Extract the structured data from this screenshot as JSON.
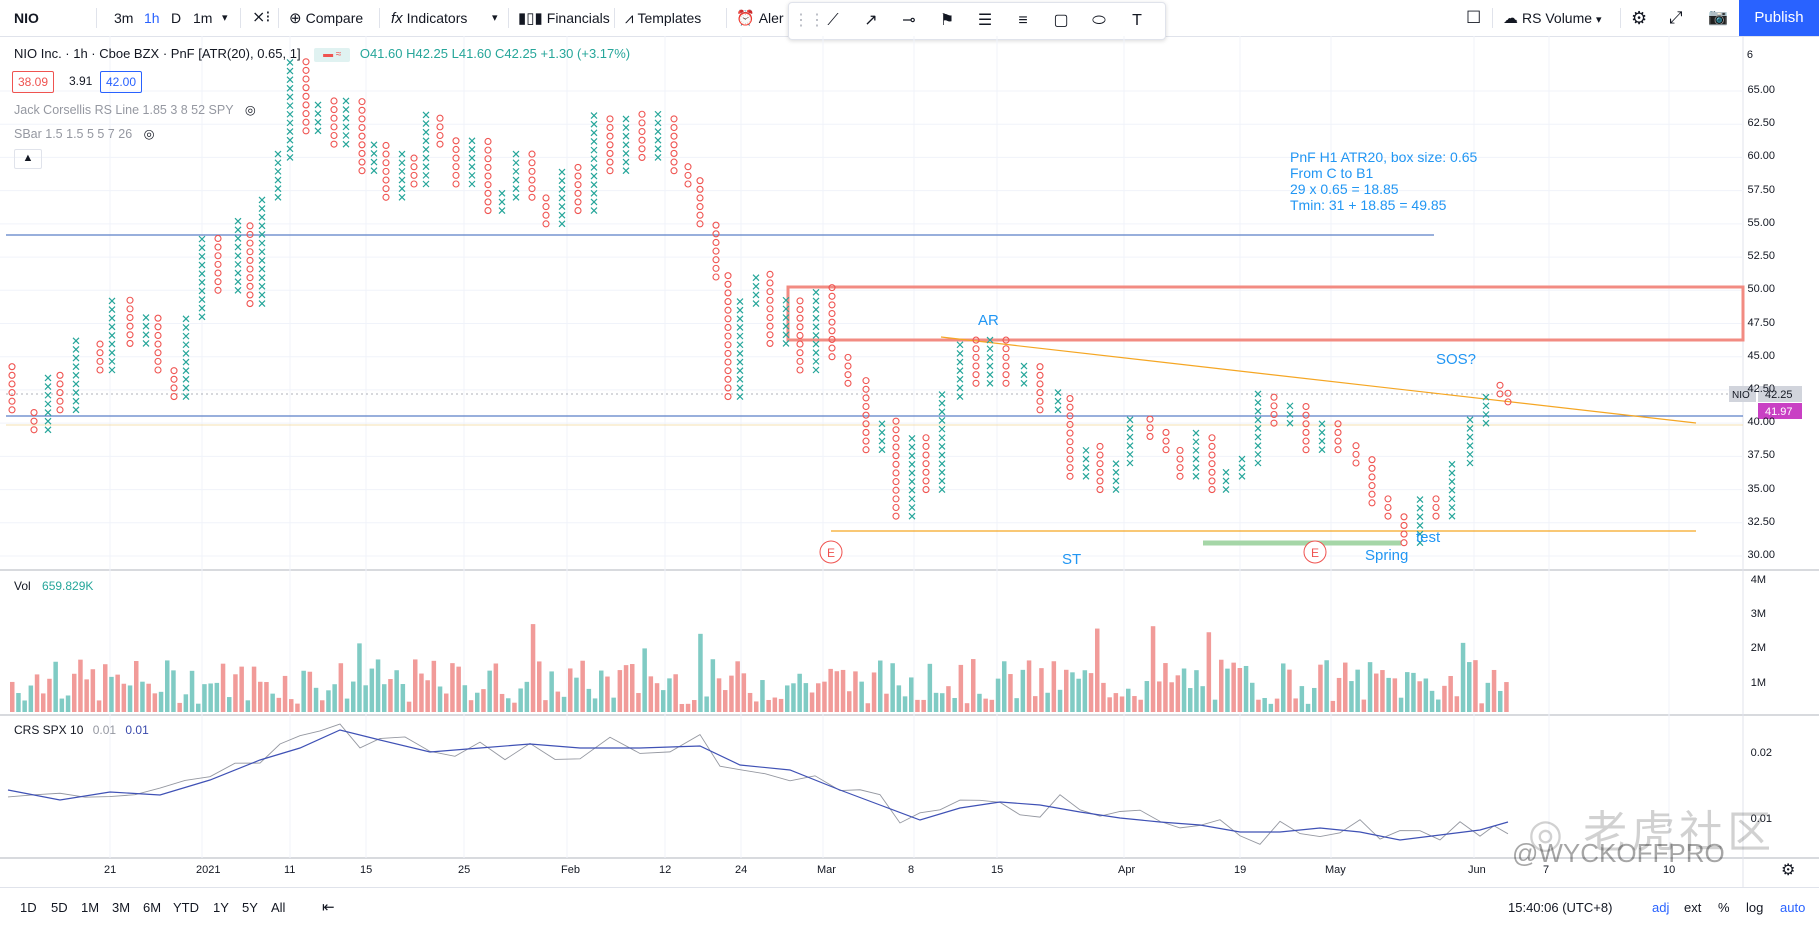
{
  "toolbar": {
    "symbol": "NIO",
    "intervals": [
      "3m",
      "1h",
      "D",
      "1m"
    ],
    "compare_label": "Compare",
    "indicators_label": "Indicators",
    "financials_label": "Financials",
    "templates_label": "Templates",
    "alert_label": "Aler",
    "rs_volume_label": "RS Volume",
    "publish_label": "Publish"
  },
  "legend": {
    "title": "NIO Inc. · 1h · Cboe BZX · PnF [ATR(20), 0.65, 1]",
    "ohlc": "O41.60 H42.25 L41.60 C42.25 +1.30 (+3.17%)",
    "bid": "38.09",
    "spread": "3.91",
    "ask": "42.00",
    "ind1": "Jack Corsellis RS Line 1.85 3 8 52 SPY",
    "ind2": "SBar 1.5 1.5 5 5 7 26",
    "vol_label": "Vol",
    "vol_value": "659.829K",
    "crs_label": "CRS SPX 10",
    "crs_value1": "0.01",
    "crs_value2": "0.01"
  },
  "annotations": {
    "box_note_lines": [
      "PnF H1 ATR20, box size: 0.65",
      "From C to B1",
      "29 x 0.65 = 18.85",
      "Tmin: 31 + 18.85 = 49.85"
    ],
    "ar": "AR",
    "sos": "SOS?",
    "st": "ST",
    "spring": "Spring",
    "test": "test",
    "e_marker": "E"
  },
  "price_axis": [
    "65.00",
    "62.50",
    "60.00",
    "57.50",
    "55.00",
    "52.50",
    "50.00",
    "47.50",
    "45.00",
    "42.50",
    "40.00",
    "37.50",
    "35.00",
    "32.50",
    "30.00"
  ],
  "price_axis_top": "6",
  "price_tags": {
    "nio_label": "NIO",
    "last": "42.25",
    "other": "41.97"
  },
  "volume_axis": [
    "4M",
    "3M",
    "2M",
    "1M"
  ],
  "crs_axis": [
    "0.02",
    "0.01"
  ],
  "time_axis": [
    "21",
    "2021",
    "11",
    "15",
    "25",
    "Feb",
    "12",
    "24",
    "Mar",
    "8",
    "15",
    "Apr",
    "19",
    "May",
    "Jun",
    "7",
    "10"
  ],
  "bottom": {
    "ranges": [
      "1D",
      "5D",
      "1M",
      "3M",
      "6M",
      "YTD",
      "1Y",
      "5Y",
      "All"
    ],
    "clock": "15:40:06 (UTC+8)",
    "adj": "adj",
    "ext": "ext",
    "pct": "%",
    "log": "log",
    "auto": "auto"
  },
  "watermark": {
    "tiger": "老虎社区",
    "handle": "@WYCKOFFPRO"
  },
  "colors": {
    "up": "#26a69a",
    "down": "#ef5350",
    "accent": "#2962ff",
    "note": "#2196f3"
  }
}
